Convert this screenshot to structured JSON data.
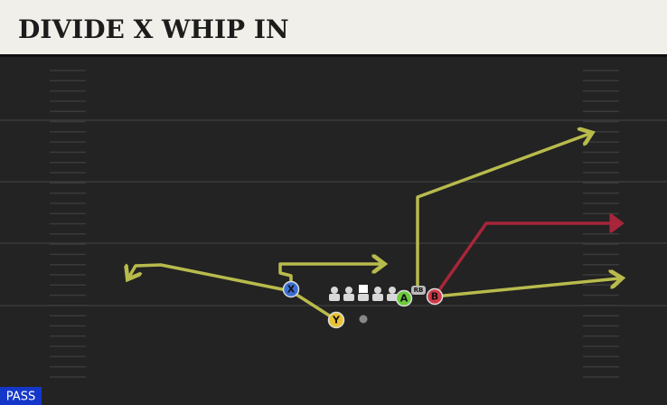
{
  "header": {
    "title": "DIVIDE X WHIP IN"
  },
  "players": {
    "x": "X",
    "y": "Y",
    "a": "A",
    "b": "B",
    "rb": "RB"
  },
  "badge": "PASS"
}
